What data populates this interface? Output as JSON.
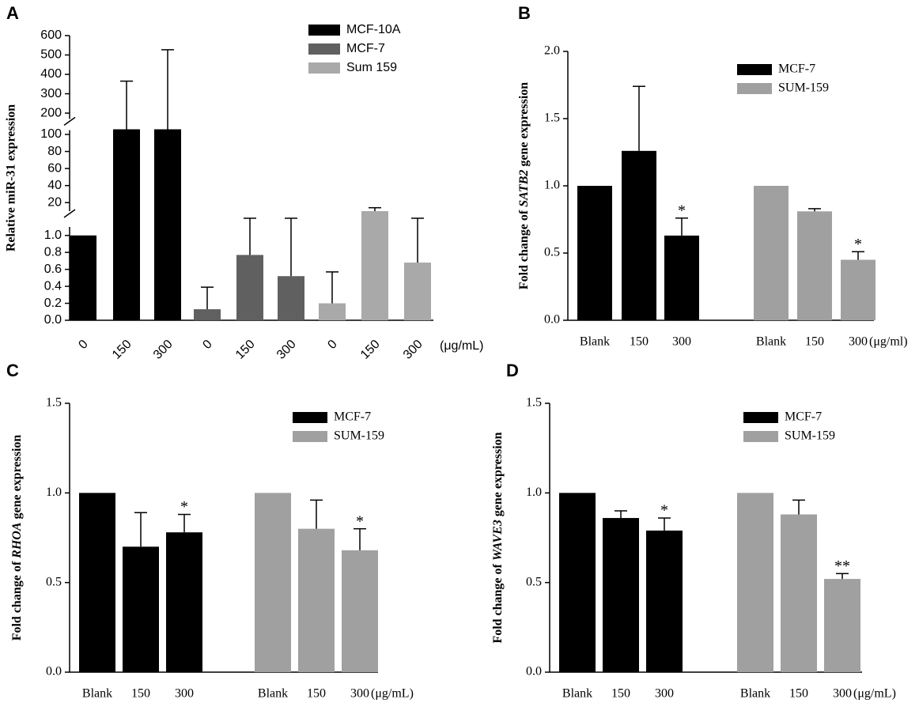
{
  "chart_data": [
    {
      "type": "bar",
      "panel_label": "A",
      "ylabel": "Relative miR-31 expression",
      "categories": [
        "0",
        "150",
        "300"
      ],
      "x_unit": "(μg/mL)",
      "y_segments": [
        {
          "ylim": [
            0,
            1.1
          ],
          "yticks": [
            {
              "value": 0,
              "label": "0.0"
            },
            0.2,
            0.4,
            0.6,
            0.8,
            {
              "value": 1,
              "label": "1.0"
            }
          ]
        },
        {
          "ylim": [
            10,
            105
          ],
          "yticks": [
            20,
            40,
            60,
            80,
            100
          ]
        },
        {
          "ylim": [
            170,
            600
          ],
          "yticks": [
            200,
            300,
            400,
            500,
            600
          ]
        }
      ],
      "legend": "top-right",
      "series": [
        {
          "name": "MCF-10A",
          "color": "#000000",
          "values": [
            1.0,
            110,
            110
          ],
          "errors": [
            null,
            255,
            417
          ]
        },
        {
          "name": "MCF-7",
          "color": "#606060",
          "values": [
            0.13,
            0.77,
            0.52
          ],
          "errors": [
            0.26,
            5.23,
            5.48
          ]
        },
        {
          "name": "Sum 159",
          "color": "#a9a9a9",
          "values": [
            0.2,
            10,
            0.68
          ],
          "errors": [
            0.37,
            4,
            5.32
          ]
        }
      ]
    },
    {
      "type": "bar",
      "panel_label": "B",
      "ylabel": [
        "Fold change of ",
        "SATB2",
        " gene expression"
      ],
      "categories": [
        "Blank",
        "150",
        "300"
      ],
      "x_unit": "(μg/ml)",
      "ylim": [
        0,
        2
      ],
      "yticks": [
        {
          "value": 0,
          "label": "0.0"
        },
        0.5,
        {
          "value": 1,
          "label": "1.0"
        },
        1.5,
        {
          "value": 2,
          "label": "2.0"
        }
      ],
      "legend": "top-right",
      "series": [
        {
          "name": "MCF-7",
          "color": "#000000",
          "values": [
            1.0,
            1.26,
            0.63
          ],
          "errors": [
            null,
            0.48,
            0.13
          ],
          "significance": [
            null,
            null,
            "*"
          ]
        },
        {
          "name": "SUM-159",
          "color": "#a0a0a0",
          "values": [
            1.0,
            0.81,
            0.45
          ],
          "errors": [
            null,
            0.02,
            0.06
          ],
          "significance": [
            null,
            null,
            "*"
          ]
        }
      ]
    },
    {
      "type": "bar",
      "panel_label": "C",
      "ylabel": [
        "Fold change of ",
        "RHOA",
        " gene expression"
      ],
      "categories": [
        "Blank",
        "150",
        "300"
      ],
      "x_unit": "(μg/mL)",
      "ylim": [
        0,
        1.5
      ],
      "yticks": [
        {
          "value": 0,
          "label": "0.0"
        },
        0.5,
        {
          "value": 1,
          "label": "1.0"
        },
        1.5
      ],
      "legend": "top-right",
      "series": [
        {
          "name": "MCF-7",
          "color": "#000000",
          "values": [
            1.0,
            0.7,
            0.78
          ],
          "errors": [
            null,
            0.19,
            0.1
          ],
          "significance": [
            null,
            null,
            "*"
          ]
        },
        {
          "name": "SUM-159",
          "color": "#a0a0a0",
          "values": [
            1.0,
            0.8,
            0.68
          ],
          "errors": [
            null,
            0.16,
            0.12
          ],
          "significance": [
            null,
            null,
            "*"
          ]
        }
      ]
    },
    {
      "type": "bar",
      "panel_label": "D",
      "ylabel": [
        "Fold change of ",
        "WAVE3",
        " gene expression"
      ],
      "categories": [
        "Blank",
        "150",
        "300"
      ],
      "x_unit": "(μg/mL)",
      "ylim": [
        0,
        1.5
      ],
      "yticks": [
        {
          "value": 0,
          "label": "0.0"
        },
        0.5,
        {
          "value": 1,
          "label": "1.0"
        },
        1.5
      ],
      "legend": "top-right",
      "series": [
        {
          "name": "MCF-7",
          "color": "#000000",
          "values": [
            1.0,
            0.86,
            0.79
          ],
          "errors": [
            null,
            0.04,
            0.07
          ],
          "significance": [
            null,
            null,
            "*"
          ]
        },
        {
          "name": "SUM-159",
          "color": "#a0a0a0",
          "values": [
            1.0,
            0.88,
            0.52
          ],
          "errors": [
            null,
            0.08,
            0.03
          ],
          "significance": [
            null,
            null,
            "**"
          ]
        }
      ]
    }
  ]
}
